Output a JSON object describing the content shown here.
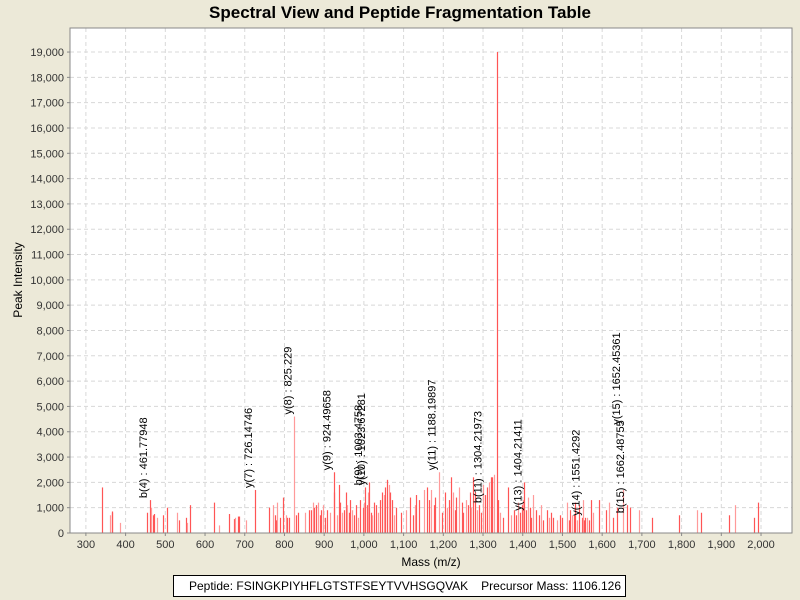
{
  "chart_data": {
    "type": "bar",
    "title": "Spectral View and Peptide Fragmentation Table",
    "xlabel": "Mass (m/z)",
    "ylabel": "Peak Intensity",
    "xlim": [
      260,
      2078
    ],
    "ylim": [
      0,
      19950
    ],
    "grid": true,
    "x_ticks": [
      300,
      400,
      500,
      600,
      700,
      800,
      900,
      1000,
      1100,
      1200,
      1300,
      1400,
      1500,
      1600,
      1700,
      1800,
      1900,
      2000
    ],
    "x_tick_labels": [
      "300",
      "400",
      "500",
      "600",
      "700",
      "800",
      "900",
      "1,000",
      "1,100",
      "1,200",
      "1,300",
      "1,400",
      "1,500",
      "1,600",
      "1,700",
      "1,800",
      "1,900",
      "2,000"
    ],
    "y_ticks": [
      0,
      1000,
      2000,
      3000,
      4000,
      5000,
      6000,
      7000,
      8000,
      9000,
      10000,
      11000,
      12000,
      13000,
      14000,
      15000,
      16000,
      17000,
      18000,
      19000
    ],
    "y_tick_labels": [
      "0",
      "1,000",
      "2,000",
      "3,000",
      "4,000",
      "5,000",
      "6,000",
      "7,000",
      "8,000",
      "9,000",
      "10,000",
      "11,000",
      "12,000",
      "13,000",
      "14,000",
      "15,000",
      "16,000",
      "17,000",
      "18,000",
      "19,000"
    ],
    "series": [
      {
        "name": "peaks",
        "color": "#ff5555",
        "peaks": [
          [
            341,
            1800
          ],
          [
            361,
            700
          ],
          [
            365,
            800
          ],
          [
            367,
            850
          ],
          [
            385,
            400
          ],
          [
            455,
            800
          ],
          [
            461,
            1300
          ],
          [
            463,
            1000
          ],
          [
            468,
            700
          ],
          [
            471,
            750
          ],
          [
            478,
            600
          ],
          [
            495,
            700
          ],
          [
            503,
            1000
          ],
          [
            530,
            800
          ],
          [
            535,
            500
          ],
          [
            551,
            600
          ],
          [
            554,
            400
          ],
          [
            562,
            1100
          ],
          [
            623,
            1200
          ],
          [
            635,
            300
          ],
          [
            661,
            750
          ],
          [
            672,
            550
          ],
          [
            676,
            600
          ],
          [
            682,
            650
          ],
          [
            686,
            650
          ],
          [
            703,
            500
          ],
          [
            726,
            1700
          ],
          [
            761,
            1000
          ],
          [
            770,
            1100
          ],
          [
            775,
            700
          ],
          [
            779,
            500
          ],
          [
            781,
            1200
          ],
          [
            789,
            600
          ],
          [
            797,
            1400
          ],
          [
            803,
            700
          ],
          [
            807,
            600
          ],
          [
            812,
            600
          ],
          [
            825,
            4600
          ],
          [
            828,
            700
          ],
          [
            833,
            800
          ],
          [
            852,
            800
          ],
          [
            863,
            900
          ],
          [
            866,
            900
          ],
          [
            872,
            1200
          ],
          [
            875,
            1000
          ],
          [
            880,
            1100
          ],
          [
            884,
            1200
          ],
          [
            890,
            700
          ],
          [
            893,
            900
          ],
          [
            897,
            1100
          ],
          [
            903,
            600
          ],
          [
            908,
            900
          ],
          [
            914,
            800
          ],
          [
            924,
            2400
          ],
          [
            926,
            1600
          ],
          [
            932,
            700
          ],
          [
            938,
            1900
          ],
          [
            941,
            1200
          ],
          [
            946,
            800
          ],
          [
            950,
            900
          ],
          [
            954,
            1600
          ],
          [
            958,
            1100
          ],
          [
            962,
            800
          ],
          [
            966,
            1300
          ],
          [
            970,
            900
          ],
          [
            975,
            700
          ],
          [
            980,
            1100
          ],
          [
            985,
            600
          ],
          [
            990,
            1300
          ],
          [
            997,
            1000
          ],
          [
            1000,
            1200
          ],
          [
            1003,
            1800
          ],
          [
            1007,
            1100
          ],
          [
            1010,
            1600
          ],
          [
            1013,
            2000
          ],
          [
            1017,
            800
          ],
          [
            1021,
            700
          ],
          [
            1026,
            1200
          ],
          [
            1031,
            1100
          ],
          [
            1036,
            800
          ],
          [
            1040,
            1300
          ],
          [
            1046,
            1600
          ],
          [
            1050,
            1500
          ],
          [
            1054,
            1800
          ],
          [
            1058,
            2100
          ],
          [
            1062,
            1900
          ],
          [
            1066,
            1600
          ],
          [
            1070,
            1300
          ],
          [
            1075,
            700
          ],
          [
            1080,
            1000
          ],
          [
            1094,
            800
          ],
          [
            1106,
            900
          ],
          [
            1115,
            1400
          ],
          [
            1124,
            700
          ],
          [
            1128,
            1100
          ],
          [
            1132,
            1500
          ],
          [
            1140,
            1300
          ],
          [
            1151,
            1700
          ],
          [
            1158,
            1800
          ],
          [
            1163,
            1300
          ],
          [
            1169,
            1700
          ],
          [
            1176,
            1100
          ],
          [
            1180,
            1400
          ],
          [
            1188,
            2400
          ],
          [
            1196,
            800
          ],
          [
            1204,
            1600
          ],
          [
            1210,
            1000
          ],
          [
            1214,
            1300
          ],
          [
            1219,
            2200
          ],
          [
            1224,
            1600
          ],
          [
            1229,
            900
          ],
          [
            1233,
            1400
          ],
          [
            1240,
            1800
          ],
          [
            1246,
            1200
          ],
          [
            1250,
            800
          ],
          [
            1256,
            1300
          ],
          [
            1261,
            1100
          ],
          [
            1266,
            1600
          ],
          [
            1270,
            1000
          ],
          [
            1274,
            2200
          ],
          [
            1280,
            1600
          ],
          [
            1284,
            900
          ],
          [
            1290,
            1100
          ],
          [
            1295,
            800
          ],
          [
            1300,
            1900
          ],
          [
            1304,
            1500
          ],
          [
            1310,
            1800
          ],
          [
            1314,
            2000
          ],
          [
            1319,
            2200
          ],
          [
            1323,
            2200
          ],
          [
            1327,
            2300
          ],
          [
            1334,
            19000
          ],
          [
            1338,
            1300
          ],
          [
            1344,
            800
          ],
          [
            1350,
            600
          ],
          [
            1362,
            1800
          ],
          [
            1370,
            700
          ],
          [
            1378,
            900
          ],
          [
            1384,
            700
          ],
          [
            1389,
            1200
          ],
          [
            1393,
            800
          ],
          [
            1397,
            1100
          ],
          [
            1401,
            1300
          ],
          [
            1404,
            2000
          ],
          [
            1409,
            900
          ],
          [
            1413,
            1400
          ],
          [
            1418,
            1000
          ],
          [
            1421,
            600
          ],
          [
            1426,
            1500
          ],
          [
            1434,
            900
          ],
          [
            1441,
            700
          ],
          [
            1446,
            1100
          ],
          [
            1451,
            500
          ],
          [
            1460,
            900
          ],
          [
            1467,
            600
          ],
          [
            1472,
            800
          ],
          [
            1477,
            600
          ],
          [
            1486,
            500
          ],
          [
            1494,
            700
          ],
          [
            1500,
            600
          ],
          [
            1512,
            1200
          ],
          [
            1517,
            500
          ],
          [
            1520,
            900
          ],
          [
            1524,
            700
          ],
          [
            1529,
            700
          ],
          [
            1532,
            1200
          ],
          [
            1537,
            500
          ],
          [
            1541,
            1100
          ],
          [
            1548,
            600
          ],
          [
            1551,
            1300
          ],
          [
            1553,
            500
          ],
          [
            1558,
            600
          ],
          [
            1562,
            600
          ],
          [
            1567,
            500
          ],
          [
            1573,
            1300
          ],
          [
            1577,
            800
          ],
          [
            1592,
            1300
          ],
          [
            1609,
            900
          ],
          [
            1617,
            1200
          ],
          [
            1628,
            600
          ],
          [
            1638,
            1000
          ],
          [
            1652,
            1700
          ],
          [
            1662,
            1100
          ],
          [
            1669,
            1000
          ],
          [
            1693,
            900
          ],
          [
            1726,
            600
          ],
          [
            1793,
            700
          ],
          [
            1839,
            900
          ],
          [
            1848,
            800
          ],
          [
            1919,
            700
          ],
          [
            1934,
            1100
          ],
          [
            1983,
            600
          ],
          [
            1992,
            1200
          ]
        ]
      }
    ],
    "annotations": [
      {
        "label": "b(4) : 461.77948",
        "x": 461,
        "y": 1300
      },
      {
        "label": "y(7) : 726.14746",
        "x": 726,
        "y": 1700
      },
      {
        "label": "y(8) : 825.229",
        "x": 825,
        "y": 4600
      },
      {
        "label": "y(9) : 924.49658",
        "x": 924,
        "y": 2400
      },
      {
        "label": "b(9) : 1003.4758",
        "x": 1003,
        "y": 1800
      },
      {
        "label": "y(10) : 1023.67281",
        "x": 1010,
        "y": 1800
      },
      {
        "label": "y(11) : 1188.19897",
        "x": 1188,
        "y": 2400
      },
      {
        "label": "b(11) : 1304.21973",
        "x": 1304,
        "y": 1100
      },
      {
        "label": "y(13) : 1404.21411",
        "x": 1404,
        "y": 800
      },
      {
        "label": "y(14) : 1551.4292",
        "x": 1551,
        "y": 600
      },
      {
        "label": "b(15) : 1662.48755",
        "x": 1662,
        "y": 700
      },
      {
        "label": "y(15) : 1652.45361",
        "x": 1652,
        "y": 4200
      }
    ]
  },
  "info_panel": {
    "peptide_label": "Peptide: FSINGKPIYHFLGTSTFSEYTVVHSGQVAK",
    "precursor_label": "Precursor Mass: 1106.126"
  }
}
